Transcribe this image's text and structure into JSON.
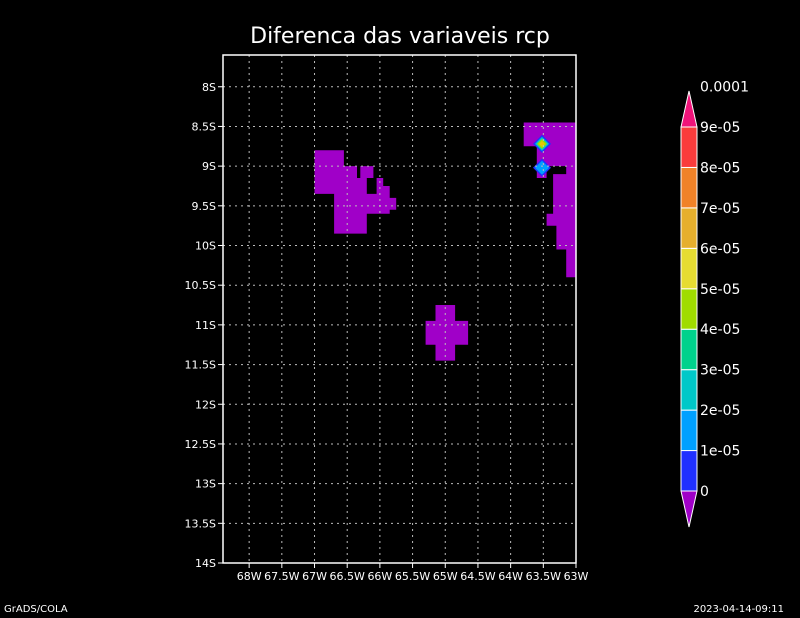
{
  "title": "Diferenca das variaveis rcp",
  "footer": {
    "left": "GrADS/COLA",
    "right": "2023-04-14-09:11"
  },
  "map": {
    "lon_range": [
      -68.4,
      -63.0
    ],
    "lat_range": [
      -14.0,
      -7.6
    ],
    "x_ticks": [
      {
        "lon": -68.0,
        "label": "68W"
      },
      {
        "lon": -67.5,
        "label": "67.5W"
      },
      {
        "lon": -67.0,
        "label": "67W"
      },
      {
        "lon": -66.5,
        "label": "66.5W"
      },
      {
        "lon": -66.0,
        "label": "66W"
      },
      {
        "lon": -65.5,
        "label": "65.5W"
      },
      {
        "lon": -65.0,
        "label": "65W"
      },
      {
        "lon": -64.5,
        "label": "64.5W"
      },
      {
        "lon": -64.0,
        "label": "64W"
      },
      {
        "lon": -63.5,
        "label": "63.5W"
      },
      {
        "lon": -63.0,
        "label": "63W"
      }
    ],
    "y_ticks": [
      {
        "lat": -8.0,
        "label": "8S"
      },
      {
        "lat": -8.5,
        "label": "8.5S"
      },
      {
        "lat": -9.0,
        "label": "9S"
      },
      {
        "lat": -9.5,
        "label": "9.5S"
      },
      {
        "lat": -10.0,
        "label": "10S"
      },
      {
        "lat": -10.5,
        "label": "10.5S"
      },
      {
        "lat": -11.0,
        "label": "11S"
      },
      {
        "lat": -11.5,
        "label": "11.5S"
      },
      {
        "lat": -12.0,
        "label": "12S"
      },
      {
        "lat": -12.5,
        "label": "12.5S"
      },
      {
        "lat": -13.0,
        "label": "13S"
      },
      {
        "lat": -13.5,
        "label": "13.5S"
      },
      {
        "lat": -14.0,
        "label": "14S"
      }
    ],
    "grid": true,
    "fill_color": "#a000c8",
    "regions": [
      {
        "name": "west-blob",
        "polygon": [
          [
            -67.0,
            -8.8
          ],
          [
            -66.55,
            -8.8
          ],
          [
            -66.55,
            -9.0
          ],
          [
            -66.35,
            -9.0
          ],
          [
            -66.35,
            -9.15
          ],
          [
            -66.2,
            -9.15
          ],
          [
            -66.2,
            -9.35
          ],
          [
            -66.05,
            -9.35
          ],
          [
            -66.05,
            -9.6
          ],
          [
            -65.85,
            -9.6
          ],
          [
            -65.85,
            -9.55
          ],
          [
            -65.75,
            -9.55
          ],
          [
            -65.75,
            -9.4
          ],
          [
            -65.85,
            -9.4
          ],
          [
            -65.85,
            -9.25
          ],
          [
            -65.95,
            -9.25
          ],
          [
            -65.95,
            -9.15
          ],
          [
            -66.1,
            -9.15
          ],
          [
            -66.1,
            -9.0
          ],
          [
            -66.3,
            -9.0
          ],
          [
            -66.3,
            -9.15
          ],
          [
            -66.05,
            -9.15
          ],
          [
            -66.05,
            -9.6
          ],
          [
            -66.2,
            -9.6
          ],
          [
            -66.2,
            -9.85
          ],
          [
            -66.7,
            -9.85
          ],
          [
            -66.7,
            -9.35
          ],
          [
            -67.0,
            -9.35
          ]
        ]
      },
      {
        "name": "center-blob",
        "polygon": [
          [
            -65.15,
            -10.75
          ],
          [
            -64.85,
            -10.75
          ],
          [
            -64.85,
            -10.95
          ],
          [
            -64.65,
            -10.95
          ],
          [
            -64.65,
            -11.25
          ],
          [
            -64.85,
            -11.25
          ],
          [
            -64.85,
            -11.45
          ],
          [
            -65.15,
            -11.45
          ],
          [
            -65.15,
            -11.25
          ],
          [
            -65.3,
            -11.25
          ],
          [
            -65.3,
            -10.95
          ],
          [
            -65.15,
            -10.95
          ]
        ]
      },
      {
        "name": "east-strip",
        "polygon": [
          [
            -63.8,
            -8.45
          ],
          [
            -63.0,
            -8.45
          ],
          [
            -63.0,
            -10.4
          ],
          [
            -63.15,
            -10.4
          ],
          [
            -63.15,
            -10.05
          ],
          [
            -63.3,
            -10.05
          ],
          [
            -63.3,
            -9.75
          ],
          [
            -63.45,
            -9.75
          ],
          [
            -63.45,
            -9.6
          ],
          [
            -63.35,
            -9.6
          ],
          [
            -63.35,
            -9.1
          ],
          [
            -63.15,
            -9.1
          ],
          [
            -63.15,
            -9.0
          ],
          [
            -63.45,
            -9.0
          ],
          [
            -63.45,
            -9.15
          ],
          [
            -63.6,
            -9.15
          ],
          [
            -63.6,
            -8.75
          ],
          [
            -63.8,
            -8.75
          ]
        ]
      }
    ],
    "hotspots": [
      {
        "lon": -63.52,
        "lat": -8.72,
        "levels": [
          "#2030ff",
          "#00c8c8",
          "#a0dc00",
          "#e6c800"
        ]
      },
      {
        "lon": -63.52,
        "lat": -9.02,
        "levels": [
          "#2030ff",
          "#00a0ff"
        ]
      }
    ]
  },
  "colorbar": {
    "colors": [
      "#a000c8",
      "#2030ff",
      "#00a0ff",
      "#00c8c8",
      "#00d28c",
      "#a0dc00",
      "#e6dc32",
      "#e6af2d",
      "#f08228",
      "#fa3c3c",
      "#f0147a"
    ],
    "labels": [
      "0",
      "1e-05",
      "2e-05",
      "3e-05",
      "4e-05",
      "5e-05",
      "6e-05",
      "7e-05",
      "8e-05",
      "9e-05",
      "0.0001"
    ]
  }
}
